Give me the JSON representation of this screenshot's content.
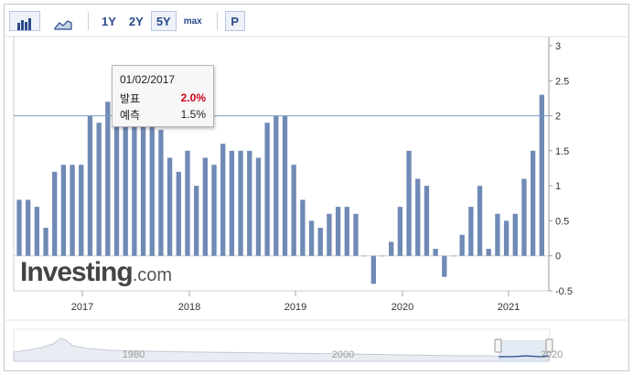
{
  "toolbar": {
    "bar_icon": "bar-chart-icon",
    "area_icon": "area-chart-icon",
    "ranges": [
      "1Y",
      "2Y",
      "5Y",
      "max"
    ],
    "active_range": "5Y",
    "p_label": "P"
  },
  "tooltip": {
    "date": "01/02/2017",
    "actual_label": "발표",
    "actual_value": "2.0%",
    "forecast_label": "예측",
    "forecast_value": "1.5%"
  },
  "logo": {
    "main": "Investing",
    "suffix": ".com"
  },
  "colors": {
    "bar": "#6f8ab5",
    "reference_line": "#7f9ac4",
    "tooltip_red": "#d0021b"
  },
  "chart_data": {
    "type": "bar",
    "yticks": [
      -0.5,
      0,
      0.5,
      1,
      1.5,
      2,
      2.5,
      3
    ],
    "ylim": [
      -0.5,
      3
    ],
    "xticks": [
      "2017",
      "2018",
      "2019",
      "2020",
      "2021"
    ],
    "reference_line": 2,
    "values": [
      0.8,
      0.8,
      0.7,
      0.4,
      1.2,
      1.3,
      1.3,
      1.3,
      2.0,
      1.9,
      2.2,
      2.0,
      2.1,
      2.0,
      2.0,
      2.0,
      1.8,
      1.4,
      1.2,
      1.5,
      1.0,
      1.4,
      1.3,
      1.6,
      1.5,
      1.5,
      1.5,
      1.4,
      1.9,
      2.0,
      2.0,
      1.3,
      0.8,
      0.5,
      0.4,
      0.6,
      0.7,
      0.7,
      0.6,
      0.0,
      -0.4,
      0.0,
      0.2,
      0.7,
      1.5,
      1.1,
      1.0,
      0.1,
      -0.3,
      0.0,
      0.3,
      0.7,
      1.0,
      0.1,
      0.6,
      0.5,
      0.6,
      1.1,
      1.5,
      2.3
    ]
  },
  "navigator": {
    "labels": [
      "1980",
      "2000",
      "2020"
    ]
  }
}
